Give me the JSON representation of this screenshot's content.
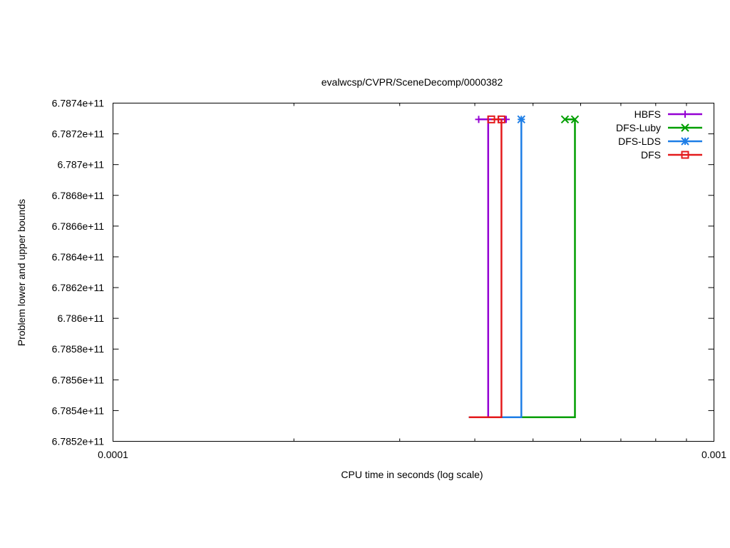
{
  "chart_data": {
    "type": "line",
    "title": "evalwcsp/CVPR/SceneDecomp/0000382",
    "xlabel": "CPU time in seconds (log scale)",
    "ylabel": "Problem lower and upper bounds",
    "xscale": "log",
    "xlim": [
      0.0001,
      0.001
    ],
    "ylim": [
      678520000000,
      678740000000
    ],
    "x_ticks": [
      {
        "value": 0.0001,
        "label": "0.0001"
      },
      {
        "value": 0.001,
        "label": "0.001"
      }
    ],
    "y_ticks": [
      {
        "value": 678520000000,
        "label": "6.7852e+11"
      },
      {
        "value": 678540000000,
        "label": "6.7854e+11"
      },
      {
        "value": 678560000000,
        "label": "6.7856e+11"
      },
      {
        "value": 678580000000,
        "label": "6.7858e+11"
      },
      {
        "value": 678600000000,
        "label": "6.786e+11"
      },
      {
        "value": 678620000000,
        "label": "6.7862e+11"
      },
      {
        "value": 678640000000,
        "label": "6.7864e+11"
      },
      {
        "value": 678660000000,
        "label": "6.7866e+11"
      },
      {
        "value": 678680000000,
        "label": "6.7868e+11"
      },
      {
        "value": 678700000000,
        "label": "6.787e+11"
      },
      {
        "value": 678720000000,
        "label": "6.7872e+11"
      },
      {
        "value": 678740000000,
        "label": "6.7874e+11"
      }
    ],
    "grid": false,
    "legend_position": "top-right",
    "series": [
      {
        "name": "HBFS",
        "color": "#9400d3",
        "marker": "plus",
        "lower": [
          [
            0.000391,
            678535700000
          ],
          [
            0.000421,
            678535700000
          ],
          [
            0.000421,
            678729400000
          ]
        ],
        "upper": [
          [
            0.000406,
            678729400000
          ],
          [
            0.000421,
            678729400000
          ],
          [
            0.000438,
            678729400000
          ],
          [
            0.000451,
            678729400000
          ]
        ]
      },
      {
        "name": "DFS-Luby",
        "color": "#009e00",
        "marker": "cross",
        "lower": [
          [
            0.000391,
            678535700000
          ],
          [
            0.000587,
            678535700000
          ],
          [
            0.000587,
            678729400000
          ]
        ],
        "upper": [
          [
            0.000565,
            678729400000
          ],
          [
            0.000587,
            678729400000
          ]
        ]
      },
      {
        "name": "DFS-LDS",
        "color": "#1e7ee6",
        "marker": "star",
        "lower": [
          [
            0.000391,
            678535700000
          ],
          [
            0.000478,
            678535700000
          ],
          [
            0.000478,
            678729400000
          ]
        ],
        "upper": [
          [
            0.000478,
            678729400000
          ]
        ]
      },
      {
        "name": "DFS",
        "color": "#e41a1c",
        "marker": "square",
        "lower": [
          [
            0.000391,
            678535700000
          ],
          [
            0.000443,
            678535700000
          ],
          [
            0.000443,
            678729400000
          ]
        ],
        "upper": [
          [
            0.000426,
            678729400000
          ],
          [
            0.000443,
            678729400000
          ]
        ]
      }
    ]
  }
}
